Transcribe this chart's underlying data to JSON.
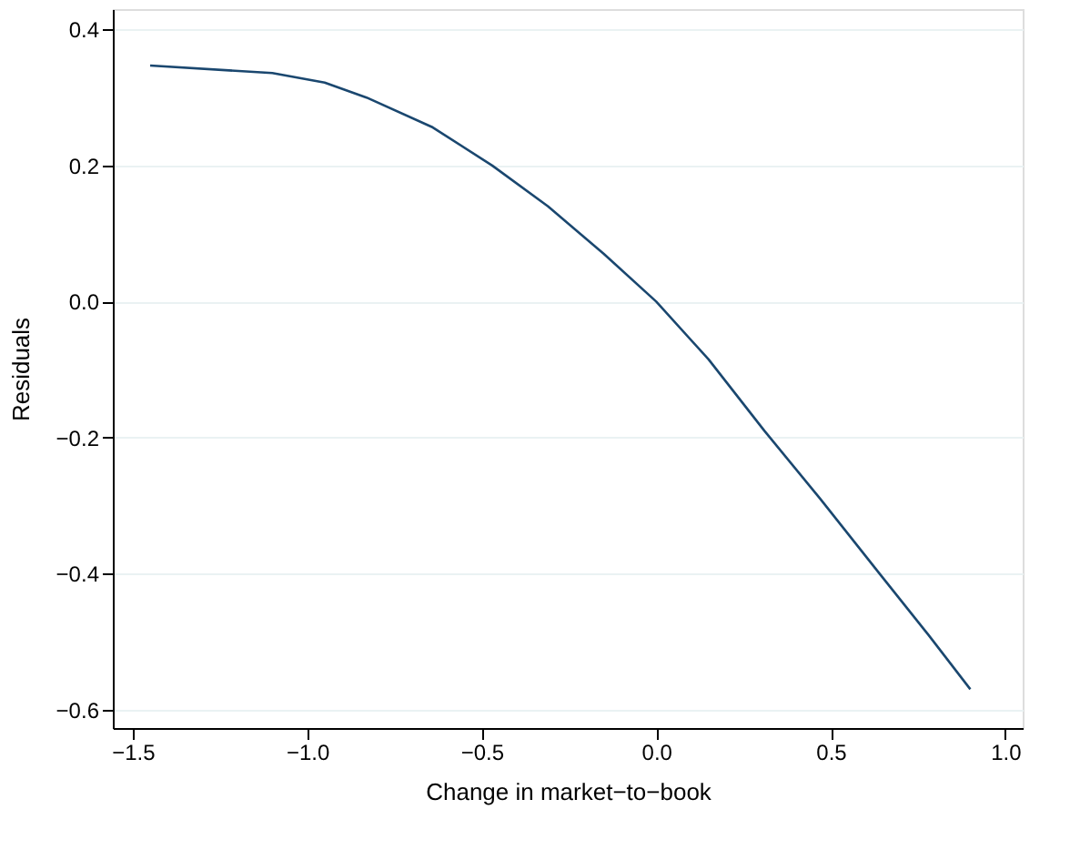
{
  "chart_data": {
    "type": "line",
    "xlabel": "Change in market−to−book",
    "ylabel": "Residuals",
    "x": [
      -1.45,
      -1.1,
      -0.95,
      -0.83,
      -0.64,
      -0.47,
      -0.31,
      -0.15,
      0.0,
      0.15,
      0.31,
      0.47,
      0.64,
      0.78,
      0.9
    ],
    "series": [
      {
        "color": "#1a476f",
        "values": [
          0.347,
          0.336,
          0.322,
          0.3,
          0.256,
          0.2,
          0.14,
          0.07,
          0.0,
          -0.085,
          -0.19,
          -0.29,
          -0.4,
          -0.49,
          -0.57
        ]
      }
    ],
    "xlim": [
      -1.557,
      1.05
    ],
    "ylim": [
      -0.627,
      0.43
    ],
    "xticks": [
      {
        "value": -1.5,
        "label": "−1.5"
      },
      {
        "value": -1.0,
        "label": "−1.0"
      },
      {
        "value": -0.5,
        "label": "−0.5"
      },
      {
        "value": 0,
        "label": "0.0"
      },
      {
        "value": 0.5,
        "label": "0.5"
      },
      {
        "value": 1.0,
        "label": "1.0"
      }
    ],
    "yticks": [
      {
        "value": -0.6,
        "label": "−0.6"
      },
      {
        "value": -0.4,
        "label": "−0.4"
      },
      {
        "value": -0.2,
        "label": "−0.2"
      },
      {
        "value": 0,
        "label": "0.0"
      },
      {
        "value": 0.2,
        "label": "0.2"
      },
      {
        "value": 0.4,
        "label": "0.4"
      }
    ],
    "grid": "y",
    "line_style": "solid"
  }
}
